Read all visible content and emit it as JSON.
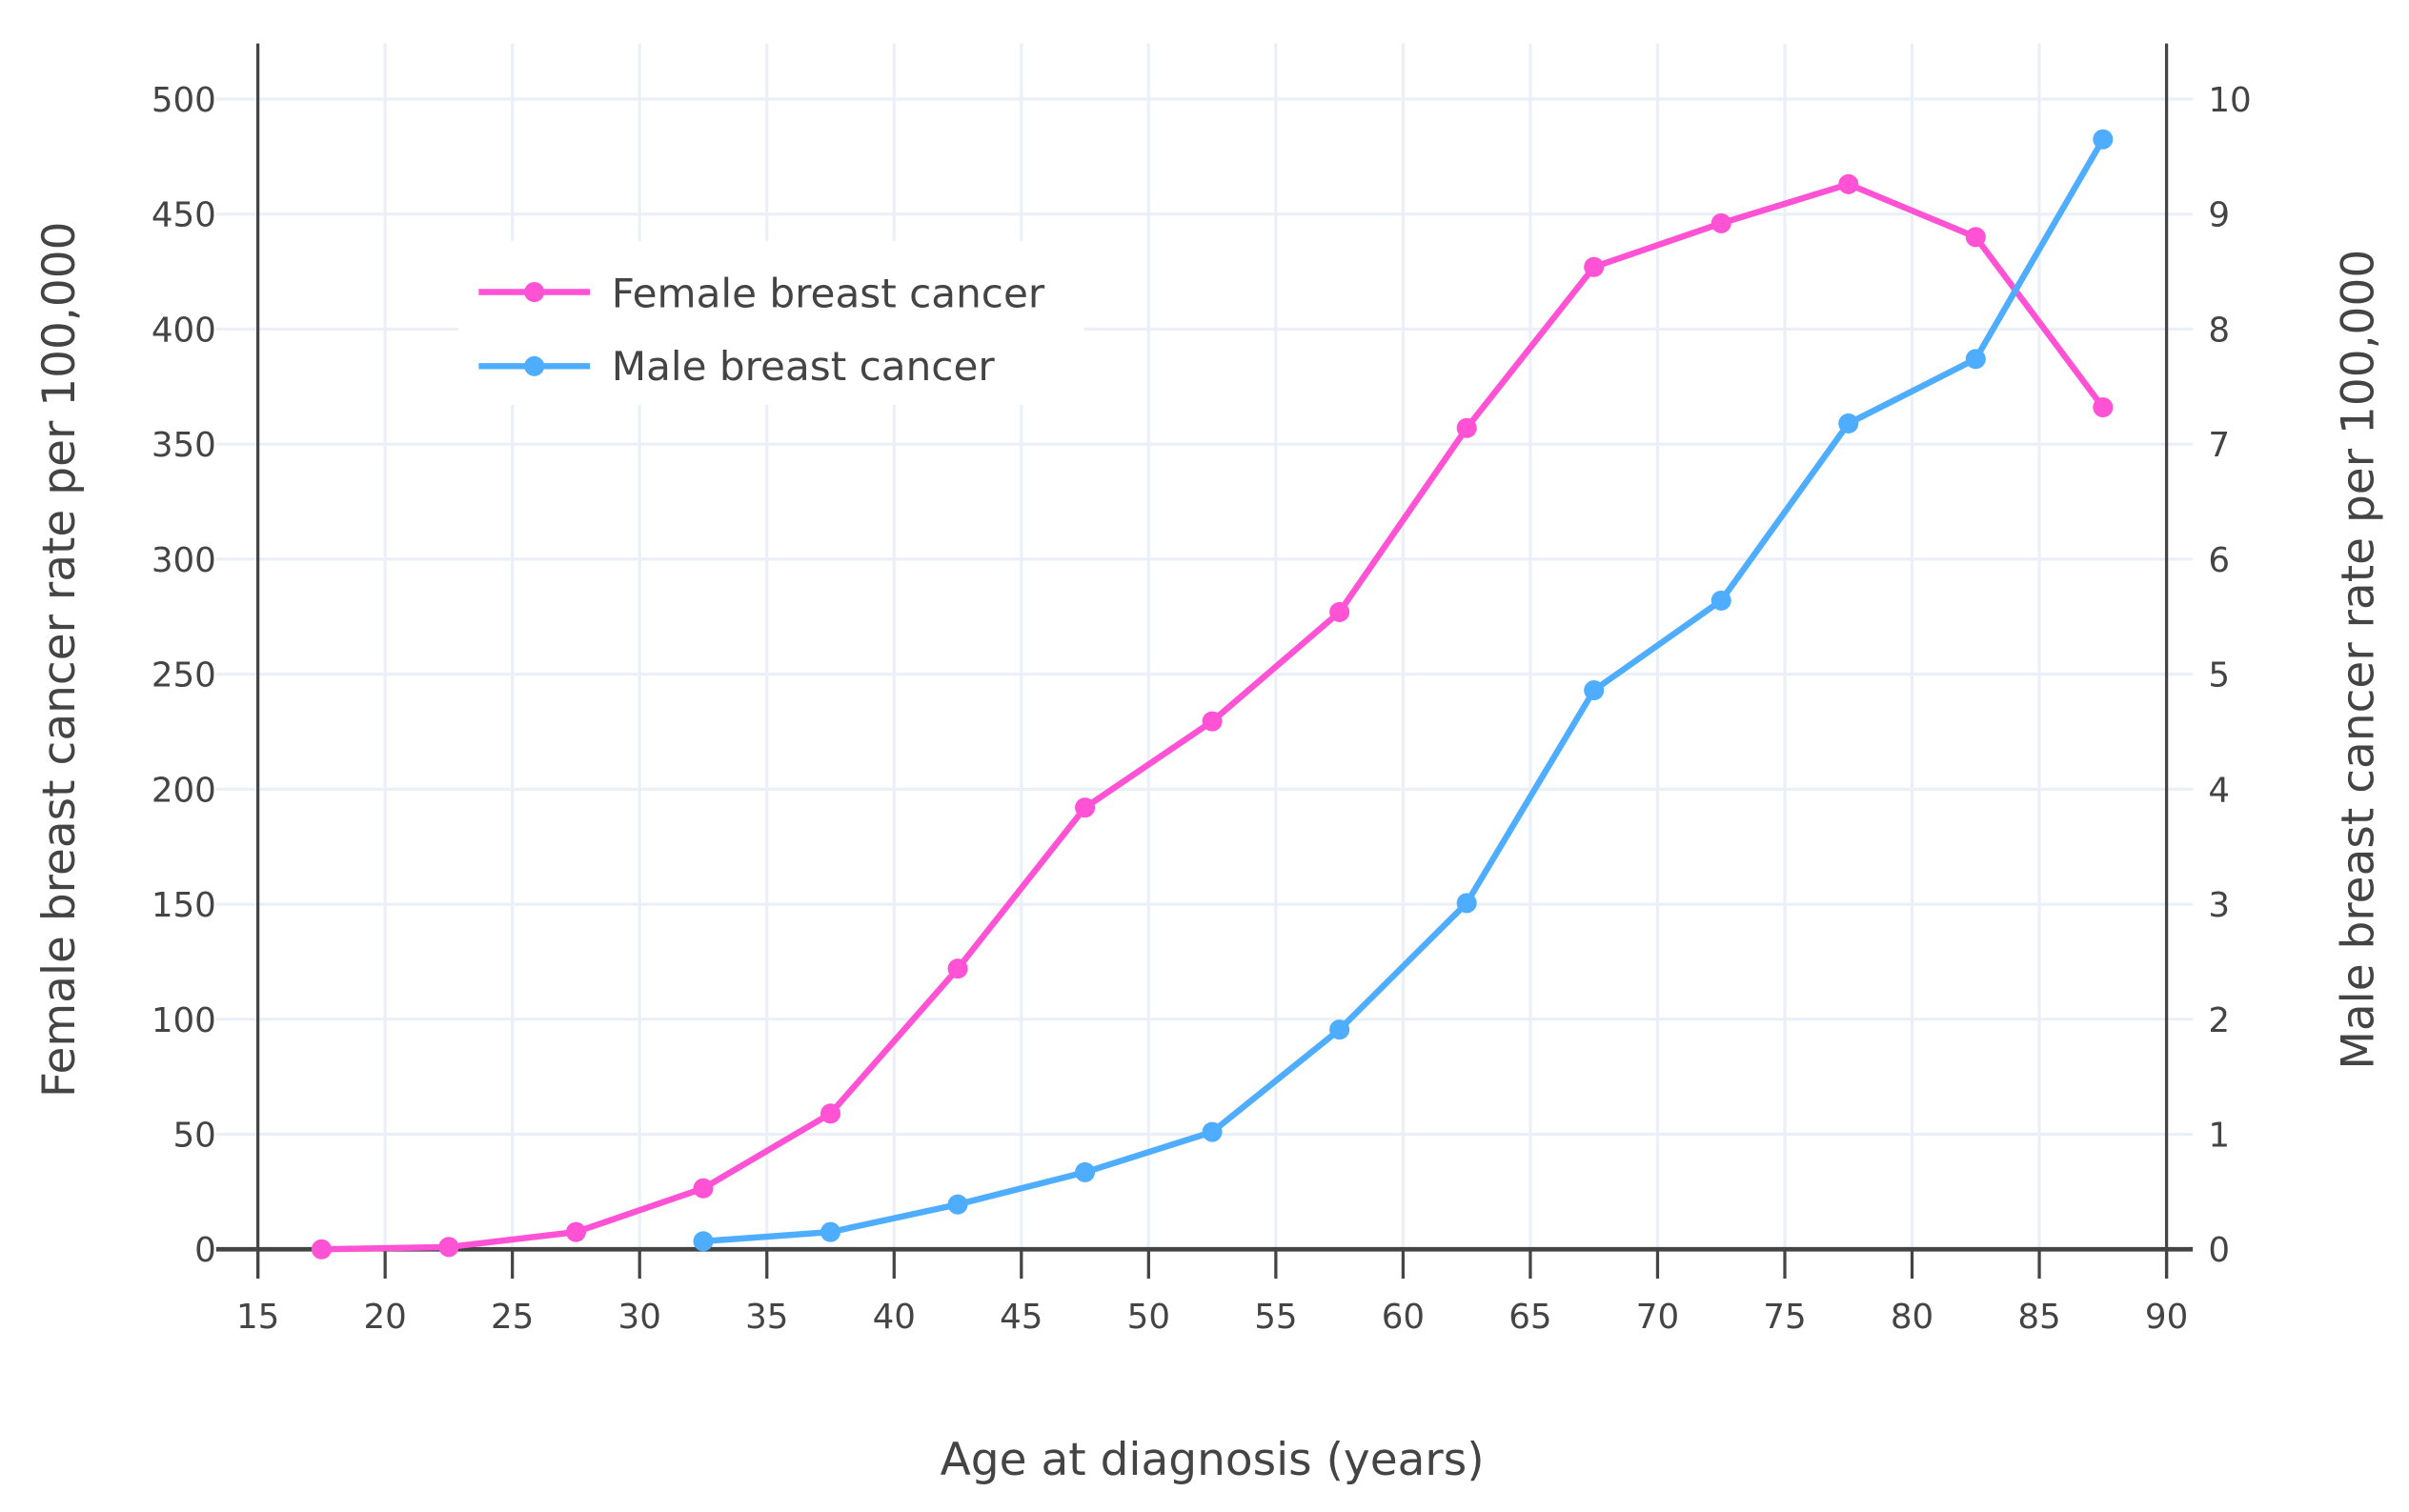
{
  "chart_data": {
    "type": "line",
    "title": "",
    "xlabel": "Age at diagnosis (years)",
    "ylabel": "Female breast cancer rate per 100,000",
    "y2label": "Male breast cancer rate per 100,000",
    "xlim": [
      15,
      90
    ],
    "ylim": [
      0,
      500
    ],
    "y2lim": [
      0,
      10
    ],
    "x_ticks": [
      "15",
      "20",
      "25",
      "30",
      "35",
      "40",
      "45",
      "50",
      "55",
      "60",
      "65",
      "70",
      "75",
      "80",
      "85",
      "90"
    ],
    "y_ticks": [
      "0",
      "50",
      "100",
      "150",
      "200",
      "250",
      "300",
      "350",
      "400",
      "450",
      "500"
    ],
    "y2_ticks": [
      "0",
      "1",
      "2",
      "3",
      "4",
      "5",
      "6",
      "7",
      "8",
      "9",
      "10"
    ],
    "grid": true,
    "legend_position": "top-left",
    "series": [
      {
        "name": "Female breast cancer",
        "axis": "left",
        "color": "#ff52d4",
        "x": [
          17.5,
          22.5,
          27.5,
          32.5,
          37.5,
          42.5,
          47.5,
          52.5,
          57.5,
          62.5,
          67.5,
          72.5,
          77.5,
          82.5,
          87.5
        ],
        "y": [
          0,
          1,
          7.5,
          26.5,
          59,
          122,
          192,
          229.5,
          277,
          357,
          427,
          446,
          463,
          440,
          366
        ]
      },
      {
        "name": "Male breast cancer",
        "axis": "right",
        "color": "#4fadff",
        "x": [
          32.5,
          37.5,
          42.5,
          47.5,
          52.5,
          57.5,
          62.5,
          67.5,
          72.5,
          77.5,
          82.5,
          87.5
        ],
        "y": [
          0.07,
          0.15,
          0.39,
          0.67,
          1.02,
          1.91,
          3.01,
          4.86,
          5.64,
          7.18,
          7.74,
          9.65
        ]
      }
    ]
  }
}
